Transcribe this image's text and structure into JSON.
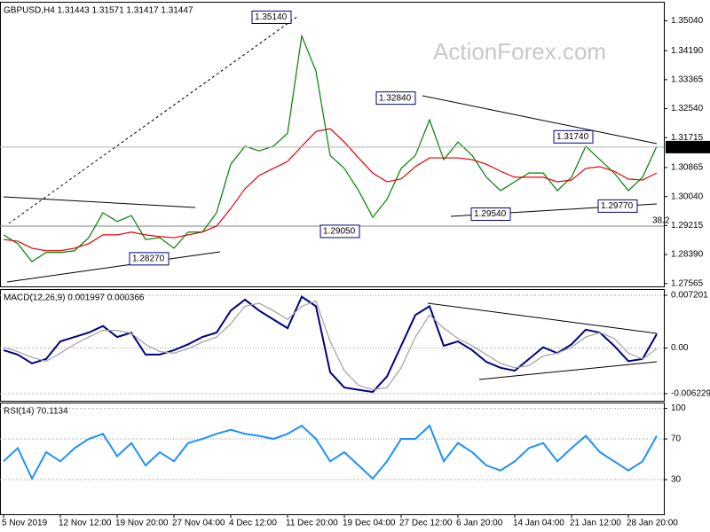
{
  "chart_data": [
    {
      "type": "line",
      "title": "GBPUSD,H4  1.31443 1.31571 1.31417 1.31447",
      "watermark": "ActionForex.com",
      "categories": [
        "5 Nov 2019",
        null,
        null,
        null,
        "12 Nov 12:00",
        null,
        null,
        null,
        "19 Nov 20:00",
        null,
        null,
        null,
        "27 Nov 04:00",
        null,
        null,
        null,
        "4 Dec 12:00",
        null,
        null,
        null,
        "11 Dec 20:00",
        null,
        null,
        null,
        "19 Dec 04:00",
        null,
        null,
        null,
        "27 Dec 12:00",
        null,
        null,
        null,
        "6 Jan 20:00",
        null,
        null,
        null,
        "14 Jan 04:00",
        null,
        null,
        null,
        "21 Jan 12:00",
        null,
        null,
        null,
        "28 Jan 20:00",
        null,
        null
      ],
      "ylim": [
        1.2751,
        1.3553
      ],
      "yticks": [
        {
          "value": 1.3504,
          "label": "1.35040"
        },
        {
          "value": 1.3419,
          "label": "1.34190"
        },
        1.33365,
        {
          "value": 1.3254,
          "label": "1.32540"
        },
        1.31715,
        1.30865,
        {
          "value": 1.3004,
          "label": "1.30040"
        },
        1.29215,
        {
          "value": 1.2839,
          "label": "1.28390"
        },
        1.27565
      ],
      "grid": false,
      "last_price": 1.31447,
      "fib_level": 38.2,
      "annotations": [
        {
          "value": 1.3514,
          "label": "1.35140"
        },
        {
          "value": 1.3284,
          "label": "1.32840"
        },
        {
          "value": 1.3174,
          "label": "1.31740"
        },
        {
          "value": 1.2954,
          "label": "1.29540"
        },
        {
          "value": 1.2977,
          "label": "1.29770"
        },
        {
          "value": 1.2905,
          "label": "1.29050"
        },
        {
          "value": 1.2827,
          "label": "1.28270"
        }
      ],
      "series": [
        {
          "color": "#008000",
          "values": [
            1.2895,
            1.287,
            1.2819,
            1.2845,
            1.2845,
            1.285,
            1.2887,
            1.2958,
            1.2933,
            1.295,
            1.2882,
            1.2887,
            1.2857,
            1.2903,
            1.2903,
            1.2958,
            1.3096,
            1.3147,
            1.3134,
            1.3147,
            1.3184,
            1.3461,
            1.3361,
            1.3121,
            1.3084,
            1.3021,
            1.2945,
            1.2996,
            1.3084,
            1.3121,
            1.3222,
            1.3109,
            1.3159,
            1.3121,
            1.3059,
            1.3021,
            1.3046,
            1.3071,
            1.3071,
            1.3021,
            1.3059,
            1.3147,
            1.3109,
            1.3071,
            1.3021,
            1.3059,
            1.3147
          ]
        },
        {
          "color": "#e00000",
          "values": [
            1.2882,
            1.2877,
            1.2857,
            1.285,
            1.285,
            1.2857,
            1.287,
            1.2895,
            1.2895,
            1.2903,
            1.2895,
            1.289,
            1.2887,
            1.2895,
            1.2903,
            1.292,
            1.297,
            1.3026,
            1.3064,
            1.3084,
            1.3104,
            1.3147,
            1.3189,
            1.3197,
            1.3159,
            1.3114,
            1.3071,
            1.3046,
            1.3054,
            1.3089,
            1.3114,
            1.3114,
            1.3114,
            1.3109,
            1.3096,
            1.3076,
            1.3059,
            1.3059,
            1.3059,
            1.3046,
            1.3051,
            1.3084,
            1.3089,
            1.3076,
            1.3054,
            1.3051,
            1.3071
          ]
        }
      ]
    },
    {
      "type": "line",
      "title": "MACD(12,26,9) 0.001997 0.000366",
      "ylim": [
        -0.0072,
        0.0078
      ],
      "yticks": [
        0.007201,
        {
          "value": 0,
          "label": "0.00"
        },
        -0.006229
      ],
      "grid": true,
      "series": [
        {
          "color": "#000080",
          "values": [
            -0.0003,
            -0.0009,
            -0.0021,
            -0.0015,
            0.0009,
            0.0015,
            0.0021,
            0.003,
            0.0015,
            0.0021,
            -0.0009,
            -0.0009,
            -0.0003,
            0.0005,
            0.0015,
            0.0021,
            0.0051,
            0.0066,
            0.0051,
            0.0039,
            0.0027,
            0.007,
            0.0057,
            -0.0033,
            -0.0054,
            -0.0057,
            -0.006,
            -0.0039,
            0.0003,
            0.0045,
            0.0057,
            0.0003,
            0.0009,
            -0.0003,
            -0.0019,
            -0.0027,
            -0.0031,
            -0.0015,
            0.0001,
            -0.0007,
            0.0005,
            0.0025,
            0.0021,
            0.0003,
            -0.0018,
            -0.0015,
            0.0019
          ]
        },
        {
          "color": "#a0a0a0",
          "values": [
            0.0001,
            -0.0005,
            -0.0013,
            -0.0018,
            -0.0007,
            0.0005,
            0.0015,
            0.0024,
            0.0024,
            0.002,
            0.0005,
            -0.0005,
            -0.0007,
            -0.0001,
            0.0008,
            0.0015,
            0.0033,
            0.0057,
            0.0061,
            0.0051,
            0.0039,
            0.0057,
            0.0064,
            0.0009,
            -0.0031,
            -0.0051,
            -0.0057,
            -0.0054,
            -0.0027,
            0.0015,
            0.0045,
            0.0027,
            0.0013,
            0.0003,
            -0.0009,
            -0.0021,
            -0.0027,
            -0.0024,
            -0.0011,
            -0.0007,
            0.0001,
            0.0015,
            0.0021,
            0.0013,
            -0.0007,
            -0.0015,
            -0.0001
          ]
        }
      ]
    },
    {
      "type": "line",
      "title": "RSI(14) 70.1134",
      "ylim": [
        -4,
        104
      ],
      "yticks": [
        100,
        70,
        30
      ],
      "grid": true,
      "series": [
        {
          "color": "#1e90ff",
          "values": [
            48,
            61,
            31,
            57,
            48,
            61,
            70,
            75,
            53,
            66,
            44,
            57,
            48,
            66,
            70,
            75,
            79,
            75,
            73,
            70,
            75,
            83,
            70,
            48,
            57,
            44,
            31,
            48,
            70,
            70,
            83,
            48,
            66,
            57,
            44,
            39,
            48,
            61,
            66,
            48,
            61,
            73,
            57,
            48,
            39,
            48,
            73
          ]
        }
      ]
    }
  ]
}
